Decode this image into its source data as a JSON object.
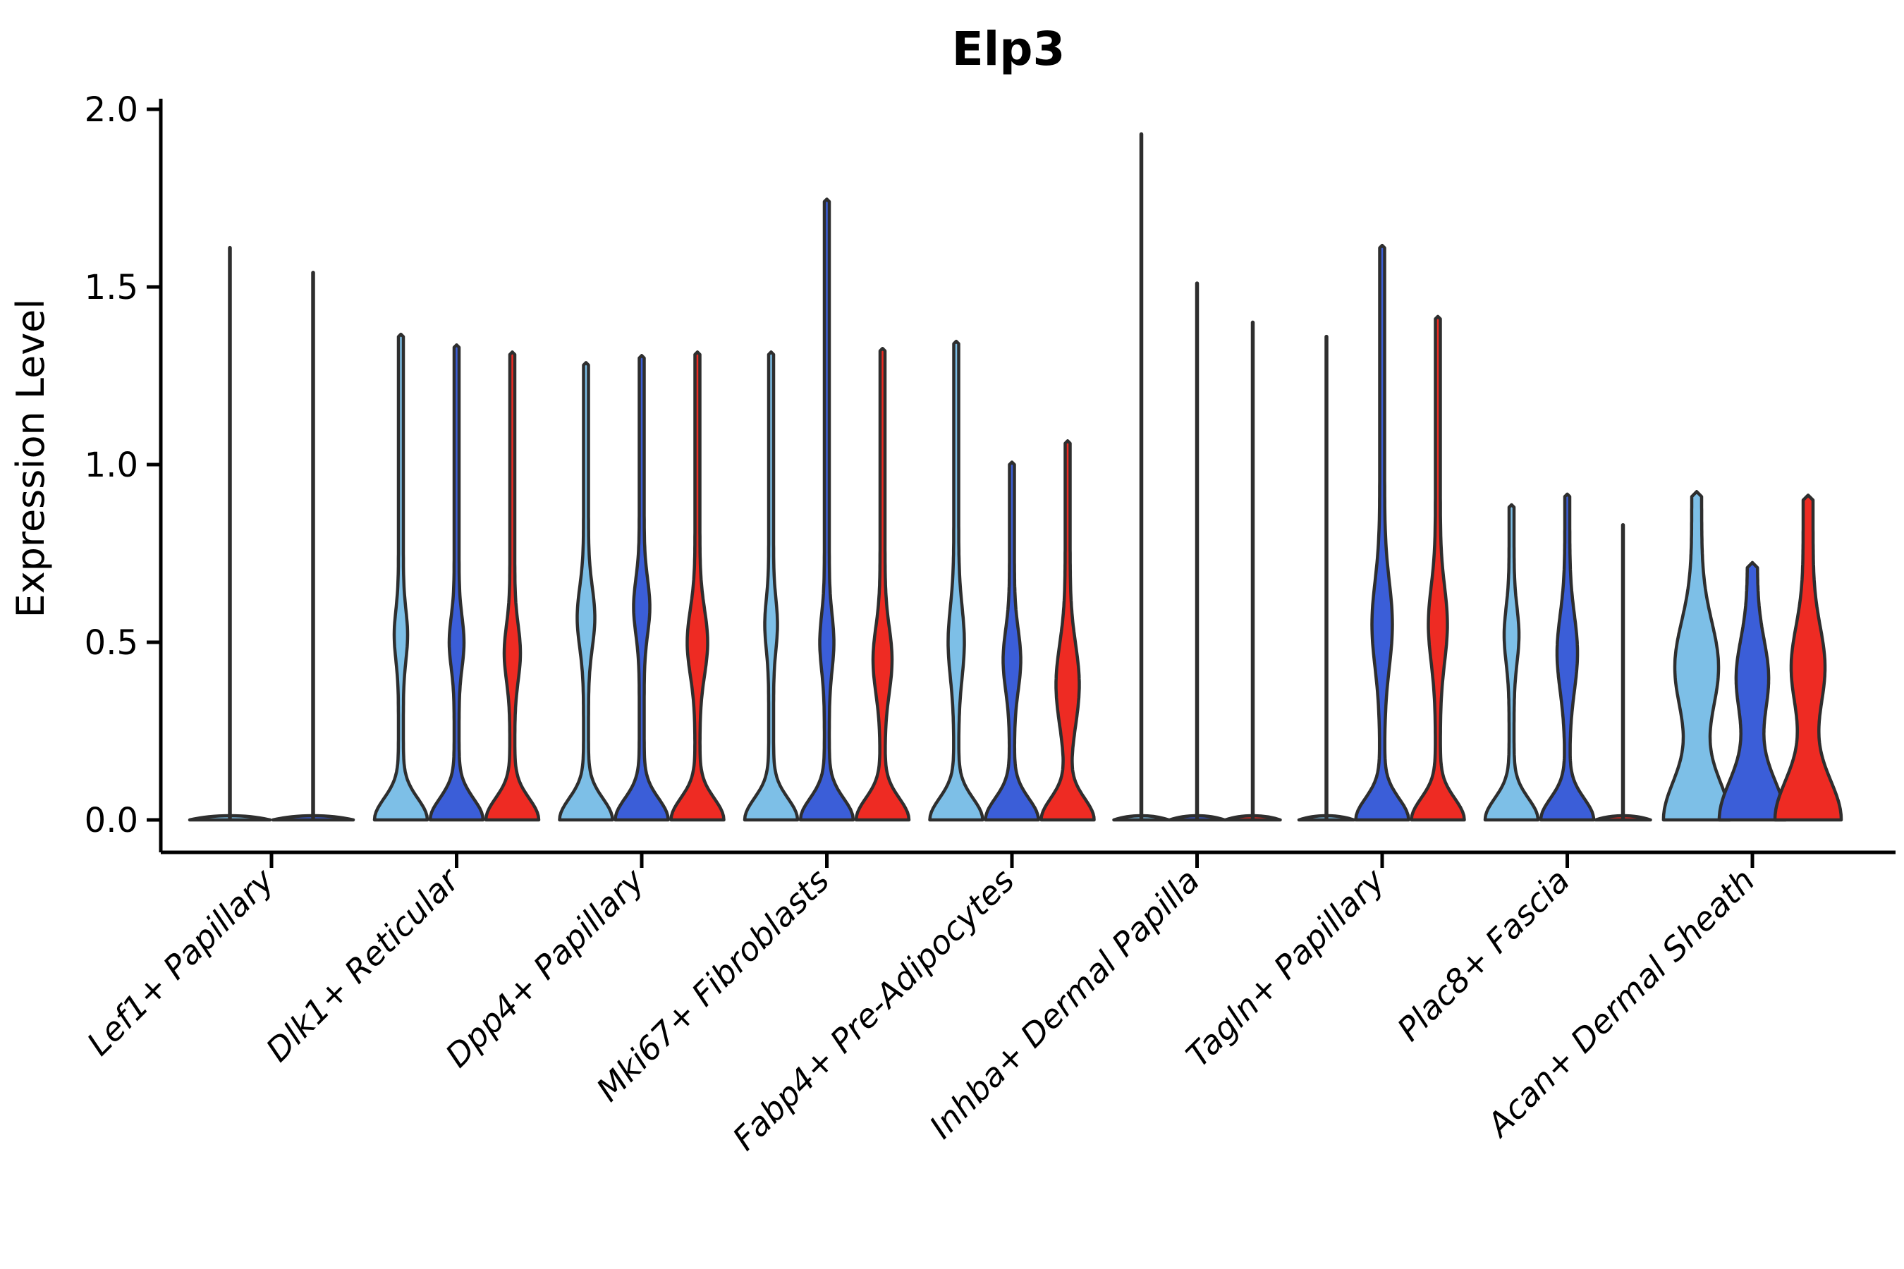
{
  "chart_data": {
    "type": "violin",
    "title": "Elp3",
    "ylabel": "Expression Level",
    "ytick_labels": [
      "0.0",
      "0.5",
      "1.0",
      "1.5",
      "2.0"
    ],
    "ytick_values": [
      0.0,
      0.5,
      1.0,
      1.5,
      2.0
    ],
    "ylim": [
      -0.09,
      2.04
    ],
    "grid": false,
    "legend": "none",
    "colors": {
      "split_1": "#7DBFE7",
      "split_2": "#3B5ED8",
      "split_3": "#EE2B23",
      "outline": "#2E2E2E",
      "axis": "#000000",
      "background": "#ffffff"
    },
    "categories": [
      "Lef1+ Papillary",
      "Dlk1+ Reticular",
      "Dpp4+ Papillary",
      "Mki67+ Fibroblasts",
      "Fabp4+ Pre-Adipocytes",
      "Inhba+ Dermal Papilla",
      "Tagln+ Papillary",
      "Plac8+ Fascia",
      "Acan+ Dermal Sheath"
    ],
    "groups": [
      {
        "category": "Lef1+ Papillary",
        "violins": [
          {
            "split": 0,
            "kind": "line",
            "max": 1.61,
            "base_hw": 57
          },
          {
            "split": 1,
            "kind": "line",
            "max": 1.54,
            "base_hw": 57
          }
        ]
      },
      {
        "category": "Dlk1+ Reticular",
        "violins": [
          {
            "split": 0,
            "kind": "violin",
            "max": 1.36,
            "bulge": {
              "center": 0.52,
              "hw": 6,
              "sigma": 0.1
            }
          },
          {
            "split": 1,
            "kind": "violin",
            "max": 1.33,
            "bulge": {
              "center": 0.5,
              "hw": 7,
              "sigma": 0.1
            }
          },
          {
            "split": 2,
            "kind": "violin",
            "max": 1.31,
            "bulge": {
              "center": 0.47,
              "hw": 8,
              "sigma": 0.11
            }
          }
        ]
      },
      {
        "category": "Dpp4+ Papillary",
        "violins": [
          {
            "split": 0,
            "kind": "violin",
            "max": 1.28,
            "bulge": {
              "center": 0.57,
              "hw": 9,
              "sigma": 0.12
            }
          },
          {
            "split": 1,
            "kind": "violin",
            "max": 1.3,
            "bulge": {
              "center": 0.6,
              "hw": 8,
              "sigma": 0.11
            }
          },
          {
            "split": 2,
            "kind": "violin",
            "max": 1.31,
            "bulge": {
              "center": 0.5,
              "hw": 11,
              "sigma": 0.13
            }
          }
        ]
      },
      {
        "category": "Mki67+ Fibroblasts",
        "violins": [
          {
            "split": 0,
            "kind": "violin",
            "max": 1.31,
            "bulge": {
              "center": 0.55,
              "hw": 5.5,
              "sigma": 0.1
            }
          },
          {
            "split": 1,
            "kind": "violin",
            "max": 1.74,
            "bulge": {
              "center": 0.5,
              "hw": 6.5,
              "sigma": 0.11
            }
          },
          {
            "split": 2,
            "kind": "violin",
            "max": 1.32,
            "bulge": {
              "center": 0.45,
              "hw": 10,
              "sigma": 0.13
            }
          }
        ]
      },
      {
        "category": "Fabp4+ Pre-Adipocytes",
        "violins": [
          {
            "split": 0,
            "kind": "violin",
            "max": 1.34,
            "bulge": {
              "center": 0.5,
              "hw": 8,
              "sigma": 0.14
            }
          },
          {
            "split": 1,
            "kind": "violin",
            "max": 1.0,
            "bulge": {
              "center": 0.45,
              "hw": 9,
              "sigma": 0.12
            }
          },
          {
            "split": 2,
            "kind": "violin",
            "max": 1.06,
            "bulge": {
              "center": 0.38,
              "hw": 13,
              "sigma": 0.16
            }
          }
        ]
      },
      {
        "category": "Inhba+ Dermal Papilla",
        "violins": [
          {
            "split": 0,
            "kind": "line",
            "max": 1.93,
            "base_hw": 39
          },
          {
            "split": 1,
            "kind": "line",
            "max": 1.51,
            "base_hw": 39
          },
          {
            "split": 2,
            "kind": "line",
            "max": 1.4,
            "base_hw": 39
          }
        ]
      },
      {
        "category": "Tagln+ Papillary",
        "violins": [
          {
            "split": 0,
            "kind": "line",
            "max": 1.36,
            "base_hw": 39
          },
          {
            "split": 1,
            "kind": "violin",
            "max": 1.61,
            "bulge": {
              "center": 0.55,
              "hw": 11,
              "sigma": 0.17
            }
          },
          {
            "split": 2,
            "kind": "violin",
            "max": 1.41,
            "bulge": {
              "center": 0.55,
              "hw": 10,
              "sigma": 0.15
            }
          }
        ]
      },
      {
        "category": "Plac8+ Fascia",
        "violins": [
          {
            "split": 0,
            "kind": "violin",
            "max": 0.88,
            "bulge": {
              "center": 0.52,
              "hw": 7,
              "sigma": 0.11
            }
          },
          {
            "split": 1,
            "kind": "violin",
            "max": 0.91,
            "bulge": {
              "center": 0.47,
              "hw": 11,
              "sigma": 0.15
            }
          },
          {
            "split": 2,
            "kind": "line",
            "max": 0.83,
            "base_hw": 39
          }
        ]
      },
      {
        "category": "Acan+ Dermal Sheath",
        "violins": [
          {
            "split": 0,
            "kind": "wide",
            "max": 0.91,
            "bulge": {
              "center": 0.43,
              "hw": 24,
              "sigma": 0.18
            }
          },
          {
            "split": 1,
            "kind": "wide",
            "max": 0.71,
            "bulge": {
              "center": 0.4,
              "hw": 16,
              "sigma": 0.15
            }
          },
          {
            "split": 2,
            "kind": "wide",
            "max": 0.9,
            "bulge": {
              "center": 0.43,
              "hw": 17,
              "sigma": 0.16
            }
          }
        ]
      }
    ]
  }
}
